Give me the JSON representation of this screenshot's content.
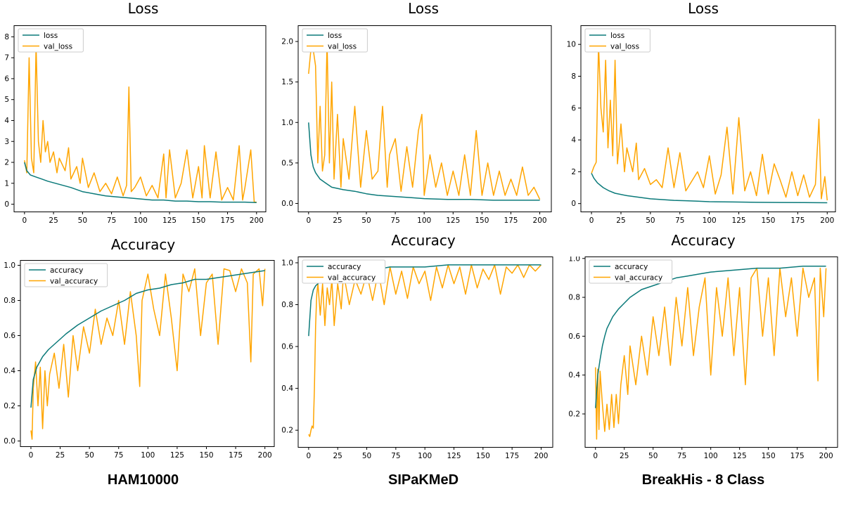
{
  "colors": {
    "train": "#0b7a7a",
    "val": "#ffa500"
  },
  "datasets": [
    "HAM10000",
    "SIPaKMeD",
    "BreakHis - 8 Class"
  ],
  "chart_data": [
    {
      "type": "line",
      "title": "Loss",
      "xlim": [
        -9,
        208
      ],
      "ylim": [
        -0.35,
        8.55
      ],
      "xticks": [
        0,
        25,
        50,
        75,
        100,
        125,
        150,
        175,
        200
      ],
      "yticks": [
        0,
        1,
        2,
        3,
        4,
        5,
        6,
        7,
        8
      ],
      "legend": "top-left",
      "series": [
        {
          "name": "loss",
          "color": "train",
          "x": [
            0,
            2,
            5,
            10,
            15,
            20,
            30,
            40,
            50,
            60,
            70,
            80,
            90,
            100,
            110,
            120,
            130,
            140,
            150,
            160,
            170,
            180,
            190,
            200
          ],
          "y": [
            2.0,
            1.6,
            1.4,
            1.3,
            1.2,
            1.1,
            0.95,
            0.8,
            0.6,
            0.5,
            0.4,
            0.35,
            0.3,
            0.25,
            0.2,
            0.2,
            0.15,
            0.15,
            0.12,
            0.12,
            0.1,
            0.1,
            0.1,
            0.08
          ]
        },
        {
          "name": "val_loss",
          "color": "val",
          "x": [
            0,
            2,
            4,
            6,
            8,
            10,
            12,
            14,
            16,
            18,
            20,
            22,
            25,
            28,
            30,
            35,
            38,
            40,
            45,
            48,
            50,
            55,
            60,
            65,
            70,
            75,
            80,
            85,
            88,
            90,
            92,
            95,
            100,
            105,
            110,
            115,
            120,
            122,
            125,
            130,
            135,
            140,
            145,
            150,
            153,
            155,
            160,
            165,
            170,
            175,
            180,
            185,
            188,
            190,
            195,
            198,
            200
          ],
          "y": [
            2.1,
            1.5,
            7.0,
            2.2,
            1.5,
            7.6,
            3.0,
            2.0,
            4.0,
            2.5,
            3.0,
            2.0,
            2.5,
            1.5,
            2.2,
            1.6,
            2.7,
            1.2,
            1.8,
            1.0,
            2.2,
            0.8,
            1.5,
            0.6,
            1.0,
            0.5,
            1.3,
            0.4,
            0.9,
            5.6,
            0.6,
            0.8,
            1.3,
            0.4,
            0.9,
            0.3,
            2.4,
            0.3,
            2.6,
            0.3,
            1.0,
            2.6,
            0.3,
            1.8,
            0.3,
            2.8,
            0.3,
            2.5,
            0.2,
            0.8,
            0.2,
            2.8,
            0.2,
            0.8,
            2.6,
            0.1,
            0.1
          ]
        }
      ]
    },
    {
      "type": "line",
      "title": "Loss",
      "xlim": [
        -9,
        210
      ],
      "ylim": [
        -0.1,
        2.2
      ],
      "xticks": [
        0,
        25,
        50,
        75,
        100,
        125,
        150,
        175,
        200
      ],
      "yticks": [
        0.0,
        0.5,
        1.0,
        1.5,
        2.0
      ],
      "legend": "top-left",
      "series": [
        {
          "name": "loss",
          "color": "train",
          "x": [
            0,
            2,
            4,
            6,
            8,
            10,
            15,
            20,
            30,
            40,
            50,
            60,
            70,
            80,
            90,
            100,
            120,
            140,
            160,
            180,
            200
          ],
          "y": [
            1.0,
            0.6,
            0.45,
            0.38,
            0.34,
            0.3,
            0.25,
            0.2,
            0.17,
            0.15,
            0.12,
            0.1,
            0.09,
            0.08,
            0.07,
            0.06,
            0.05,
            0.05,
            0.04,
            0.04,
            0.04
          ]
        },
        {
          "name": "val_loss",
          "color": "val",
          "x": [
            0,
            2,
            4,
            6,
            8,
            10,
            12,
            14,
            16,
            18,
            20,
            22,
            25,
            28,
            30,
            35,
            40,
            45,
            50,
            55,
            60,
            64,
            68,
            70,
            75,
            80,
            85,
            90,
            95,
            98,
            100,
            105,
            110,
            115,
            120,
            125,
            130,
            135,
            140,
            145,
            150,
            155,
            160,
            165,
            170,
            175,
            180,
            185,
            190,
            195,
            200
          ],
          "y": [
            1.6,
            1.9,
            1.9,
            1.7,
            0.5,
            1.2,
            0.4,
            0.6,
            2.0,
            0.5,
            1.5,
            0.3,
            1.1,
            0.2,
            0.8,
            0.3,
            1.2,
            0.2,
            0.9,
            0.3,
            0.4,
            1.2,
            0.2,
            0.6,
            0.8,
            0.15,
            0.7,
            0.2,
            0.9,
            1.1,
            0.1,
            0.6,
            0.2,
            0.5,
            0.1,
            0.4,
            0.1,
            0.6,
            0.1,
            0.9,
            0.1,
            0.5,
            0.1,
            0.4,
            0.1,
            0.3,
            0.1,
            0.45,
            0.1,
            0.2,
            0.05
          ]
        }
      ]
    },
    {
      "type": "line",
      "title": "Loss",
      "xlim": [
        -9,
        207
      ],
      "ylim": [
        -0.5,
        11.2
      ],
      "xticks": [
        0,
        25,
        50,
        75,
        100,
        125,
        150,
        175,
        200
      ],
      "yticks": [
        0,
        2,
        4,
        6,
        8,
        10
      ],
      "legend": "top-left",
      "series": [
        {
          "name": "loss",
          "color": "train",
          "x": [
            0,
            2,
            5,
            10,
            15,
            20,
            30,
            40,
            50,
            60,
            70,
            80,
            90,
            100,
            120,
            140,
            160,
            180,
            200
          ],
          "y": [
            1.9,
            1.6,
            1.3,
            1.0,
            0.8,
            0.65,
            0.5,
            0.4,
            0.3,
            0.25,
            0.2,
            0.18,
            0.15,
            0.12,
            0.1,
            0.08,
            0.07,
            0.06,
            0.05
          ]
        },
        {
          "name": "val_loss",
          "color": "val",
          "x": [
            0,
            2,
            4,
            6,
            8,
            10,
            12,
            14,
            16,
            18,
            20,
            22,
            25,
            28,
            30,
            35,
            38,
            40,
            45,
            50,
            55,
            60,
            65,
            70,
            75,
            80,
            90,
            95,
            100,
            105,
            110,
            115,
            120,
            125,
            130,
            135,
            140,
            145,
            150,
            155,
            160,
            165,
            170,
            175,
            180,
            185,
            190,
            193,
            195,
            198,
            200
          ],
          "y": [
            1.9,
            2.3,
            2.6,
            10.0,
            6.0,
            4.5,
            9.0,
            3.5,
            6.5,
            3.0,
            9.0,
            2.5,
            5.0,
            2.0,
            3.5,
            2.0,
            3.8,
            1.5,
            2.2,
            1.2,
            1.5,
            1.0,
            3.5,
            1.0,
            3.2,
            0.8,
            2.0,
            1.0,
            3.0,
            0.6,
            1.8,
            4.8,
            0.6,
            5.4,
            0.8,
            2.0,
            0.5,
            3.1,
            0.6,
            2.5,
            1.5,
            0.4,
            2.0,
            0.5,
            1.8,
            0.4,
            1.2,
            5.3,
            0.3,
            1.7,
            0.2
          ]
        }
      ]
    },
    {
      "type": "line",
      "title": "Accuracy",
      "xlim": [
        -9,
        208
      ],
      "ylim": [
        -0.03,
        1.03
      ],
      "xticks": [
        0,
        25,
        50,
        75,
        100,
        125,
        150,
        175,
        200
      ],
      "yticks": [
        0.0,
        0.2,
        0.4,
        0.6,
        0.8,
        1.0
      ],
      "legend": "top-left",
      "series": [
        {
          "name": "accuracy",
          "color": "train",
          "x": [
            0,
            2,
            5,
            10,
            15,
            20,
            25,
            30,
            40,
            50,
            60,
            70,
            80,
            90,
            100,
            110,
            120,
            130,
            140,
            150,
            160,
            170,
            180,
            190,
            200
          ],
          "y": [
            0.19,
            0.35,
            0.42,
            0.48,
            0.52,
            0.55,
            0.58,
            0.61,
            0.66,
            0.7,
            0.74,
            0.77,
            0.8,
            0.84,
            0.86,
            0.87,
            0.89,
            0.9,
            0.92,
            0.92,
            0.93,
            0.94,
            0.95,
            0.96,
            0.97
          ]
        },
        {
          "name": "val_accuracy",
          "color": "val",
          "x": [
            0,
            1,
            2,
            4,
            6,
            8,
            10,
            12,
            14,
            16,
            20,
            24,
            28,
            32,
            36,
            40,
            45,
            50,
            55,
            60,
            65,
            70,
            75,
            80,
            85,
            90,
            93,
            95,
            100,
            105,
            110,
            115,
            120,
            125,
            130,
            135,
            140,
            145,
            150,
            155,
            160,
            165,
            170,
            175,
            180,
            185,
            188,
            190,
            195,
            198,
            200
          ],
          "y": [
            0.06,
            0.01,
            0.3,
            0.45,
            0.2,
            0.42,
            0.07,
            0.4,
            0.2,
            0.38,
            0.5,
            0.3,
            0.55,
            0.25,
            0.6,
            0.4,
            0.65,
            0.5,
            0.75,
            0.55,
            0.7,
            0.6,
            0.8,
            0.55,
            0.85,
            0.6,
            0.31,
            0.8,
            0.95,
            0.75,
            0.6,
            0.95,
            0.7,
            0.4,
            0.95,
            0.85,
            0.98,
            0.6,
            0.9,
            0.95,
            0.55,
            0.98,
            0.97,
            0.85,
            0.98,
            0.9,
            0.45,
            0.95,
            0.98,
            0.77,
            0.98
          ]
        }
      ]
    },
    {
      "type": "line",
      "title": "Accuracy",
      "xlim": [
        -9,
        210
      ],
      "ylim": [
        0.12,
        1.03
      ],
      "xticks": [
        0,
        25,
        50,
        75,
        100,
        125,
        150,
        175,
        200
      ],
      "yticks": [
        0.2,
        0.4,
        0.6,
        0.8,
        1.0
      ],
      "legend": "top-left",
      "series": [
        {
          "name": "accuracy",
          "color": "train",
          "x": [
            0,
            2,
            4,
            6,
            8,
            10,
            15,
            20,
            25,
            30,
            40,
            50,
            60,
            70,
            80,
            100,
            120,
            140,
            160,
            180,
            200
          ],
          "y": [
            0.65,
            0.82,
            0.87,
            0.89,
            0.9,
            0.91,
            0.92,
            0.93,
            0.94,
            0.95,
            0.96,
            0.97,
            0.97,
            0.98,
            0.98,
            0.98,
            0.99,
            0.99,
            0.99,
            0.99,
            0.99
          ]
        },
        {
          "name": "val_accuracy",
          "color": "val",
          "x": [
            0,
            1,
            2,
            3,
            4,
            5,
            6,
            7,
            8,
            10,
            12,
            14,
            16,
            18,
            20,
            22,
            25,
            28,
            30,
            35,
            40,
            45,
            50,
            55,
            60,
            65,
            70,
            75,
            80,
            85,
            90,
            95,
            100,
            105,
            110,
            115,
            120,
            125,
            130,
            135,
            140,
            145,
            150,
            155,
            160,
            165,
            170,
            175,
            180,
            185,
            190,
            195,
            200
          ],
          "y": [
            0.18,
            0.17,
            0.2,
            0.22,
            0.21,
            0.4,
            0.7,
            0.85,
            0.9,
            0.75,
            0.9,
            0.7,
            0.88,
            0.8,
            0.92,
            0.7,
            0.9,
            0.78,
            0.95,
            0.8,
            0.92,
            0.85,
            0.95,
            0.82,
            0.96,
            0.8,
            0.98,
            0.85,
            0.96,
            0.83,
            0.98,
            0.9,
            0.96,
            0.82,
            0.98,
            0.88,
            0.99,
            0.9,
            0.98,
            0.85,
            0.99,
            0.88,
            0.97,
            0.92,
            0.99,
            0.85,
            0.98,
            0.95,
            0.99,
            0.93,
            0.99,
            0.96,
            0.99
          ]
        }
      ]
    },
    {
      "type": "line",
      "title": "Accuracy",
      "xlim": [
        -9,
        210
      ],
      "ylim": [
        0.03,
        1.01
      ],
      "xticks": [
        0,
        25,
        50,
        75,
        100,
        125,
        150,
        175,
        200
      ],
      "yticks": [
        0.2,
        0.4,
        0.6,
        0.8,
        1.0
      ],
      "legend": "top-left",
      "series": [
        {
          "name": "accuracy",
          "color": "train",
          "x": [
            0,
            2,
            4,
            6,
            8,
            10,
            15,
            20,
            25,
            30,
            40,
            50,
            60,
            70,
            80,
            90,
            100,
            120,
            140,
            160,
            180,
            200
          ],
          "y": [
            0.23,
            0.4,
            0.48,
            0.55,
            0.6,
            0.64,
            0.7,
            0.74,
            0.77,
            0.8,
            0.84,
            0.86,
            0.88,
            0.9,
            0.91,
            0.92,
            0.93,
            0.94,
            0.95,
            0.95,
            0.96,
            0.96
          ]
        },
        {
          "name": "val_accuracy",
          "color": "val",
          "x": [
            0,
            1,
            2,
            3,
            4,
            6,
            8,
            10,
            12,
            14,
            16,
            18,
            20,
            22,
            25,
            28,
            30,
            35,
            40,
            45,
            50,
            55,
            60,
            65,
            70,
            75,
            80,
            85,
            90,
            95,
            100,
            105,
            110,
            115,
            120,
            125,
            130,
            135,
            140,
            145,
            150,
            155,
            160,
            165,
            170,
            175,
            180,
            185,
            190,
            193,
            195,
            198,
            200
          ],
          "y": [
            0.44,
            0.07,
            0.43,
            0.12,
            0.42,
            0.25,
            0.11,
            0.25,
            0.12,
            0.3,
            0.13,
            0.3,
            0.15,
            0.35,
            0.5,
            0.3,
            0.55,
            0.35,
            0.6,
            0.4,
            0.7,
            0.5,
            0.75,
            0.45,
            0.8,
            0.55,
            0.85,
            0.5,
            0.75,
            0.9,
            0.4,
            0.85,
            0.6,
            0.9,
            0.5,
            0.85,
            0.35,
            0.9,
            0.95,
            0.6,
            0.9,
            0.5,
            0.95,
            0.7,
            0.9,
            0.6,
            0.95,
            0.8,
            0.9,
            0.37,
            0.95,
            0.7,
            0.95
          ]
        }
      ]
    }
  ]
}
